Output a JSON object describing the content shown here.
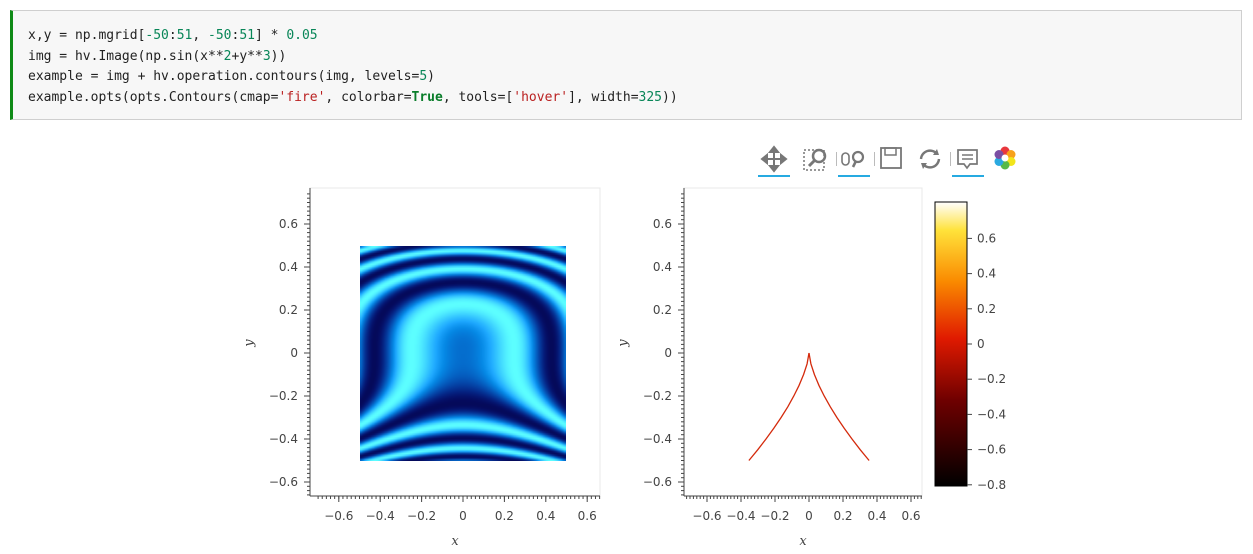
{
  "code_cell": {
    "lines": [
      [
        {
          "t": "x,y = np.mgrid["
        },
        {
          "t": "-50",
          "c": "num"
        },
        {
          "t": ":"
        },
        {
          "t": "51",
          "c": "num"
        },
        {
          "t": ", "
        },
        {
          "t": "-50",
          "c": "num"
        },
        {
          "t": ":"
        },
        {
          "t": "51",
          "c": "num"
        },
        {
          "t": "] * "
        },
        {
          "t": "0.05",
          "c": "num"
        }
      ],
      [
        {
          "t": "img = hv.Image(np.sin(x**"
        },
        {
          "t": "2",
          "c": "num"
        },
        {
          "t": "+y**"
        },
        {
          "t": "3",
          "c": "num"
        },
        {
          "t": "))"
        }
      ],
      [
        {
          "t": "example = img + hv.operation.contours(img, levels="
        },
        {
          "t": "5",
          "c": "num"
        },
        {
          "t": ")"
        }
      ],
      [
        {
          "t": "example.opts(opts.Contours(cmap="
        },
        {
          "t": "'fire'",
          "c": "str"
        },
        {
          "t": ", colorbar="
        },
        {
          "t": "True",
          "c": "kw"
        },
        {
          "t": ", tools=["
        },
        {
          "t": "'hover'",
          "c": "str"
        },
        {
          "t": "], width="
        },
        {
          "t": "325",
          "c": "num"
        },
        {
          "t": "))"
        }
      ]
    ]
  },
  "toolbar": {
    "tools": [
      {
        "name": "pan-tool",
        "icon": "move-arrows-icon",
        "active": true
      },
      {
        "name": "box-zoom-tool",
        "icon": "box-zoom-icon",
        "active": false
      },
      {
        "name": "wheel-zoom-tool",
        "icon": "wheel-zoom-icon",
        "active": true
      },
      {
        "name": "save-tool",
        "icon": "save-icon",
        "active": false
      },
      {
        "name": "reset-tool",
        "icon": "reset-icon",
        "active": false
      },
      {
        "name": "hover-tool",
        "icon": "hover-icon",
        "active": true
      },
      {
        "name": "bokeh-logo",
        "icon": "bokeh-logo-icon",
        "active": false
      }
    ]
  },
  "image_plot": {
    "xlabel": "x",
    "ylabel": "y",
    "x_ticks": [
      "−0.6",
      "−0.4",
      "−0.2",
      "0",
      "0.2",
      "0.4",
      "0.6"
    ],
    "y_ticks": [
      "0.6",
      "0.4",
      "0.2",
      "0",
      "−0.2",
      "−0.4",
      "−0.6"
    ],
    "colormap": "blues-cyan"
  },
  "contour_plot": {
    "xlabel": "x",
    "ylabel": "y",
    "x_ticks": [
      "−0.6",
      "−0.4",
      "−0.2",
      "0",
      "0.2",
      "0.4",
      "0.6"
    ],
    "y_ticks": [
      "0.6",
      "0.4",
      "0.2",
      "0",
      "−0.2",
      "−0.4",
      "−0.6"
    ],
    "cmap": "fire",
    "levels": 5,
    "colors": [
      "#1a0000",
      "#7a0a0a",
      "#d42a0c",
      "#f58a0c",
      "#ffb22a"
    ]
  },
  "colorbar": {
    "ticks": [
      "0.6",
      "0.4",
      "0.2",
      "0",
      "−0.2",
      "−0.4",
      "−0.6",
      "−0.8"
    ]
  }
}
